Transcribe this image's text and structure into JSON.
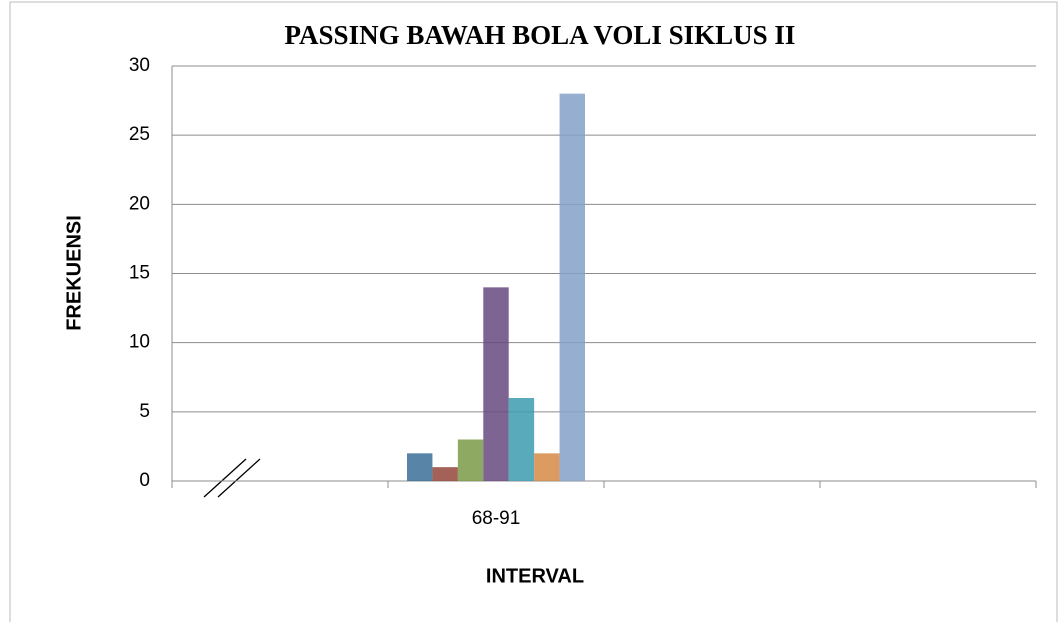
{
  "chart_data": {
    "type": "bar",
    "title": "PASSING BAWAH BOLA VOLI SIKLUS II",
    "x_label": "INTERVAL",
    "y_label": "FREKUENSI",
    "categories": [
      null,
      "68-91",
      null,
      null
    ],
    "series": [
      {
        "color": "#3a6f98",
        "values": [
          null,
          2,
          null,
          null
        ]
      },
      {
        "color": "#94453a",
        "values": [
          null,
          1,
          null,
          null
        ]
      },
      {
        "color": "#7a9a45",
        "values": [
          null,
          3,
          null,
          null
        ]
      },
      {
        "color": "#67497f",
        "values": [
          null,
          14,
          null,
          null
        ]
      },
      {
        "color": "#3c9cb0",
        "values": [
          null,
          6,
          null,
          null
        ]
      },
      {
        "color": "#d68a45",
        "values": [
          null,
          2,
          null,
          null
        ]
      },
      {
        "color": "#84a0c8",
        "values": [
          null,
          28,
          null,
          null
        ]
      }
    ],
    "ylim": [
      0,
      30
    ],
    "yticks": [
      0,
      5,
      10,
      15,
      20,
      25,
      30
    ],
    "grid": true
  }
}
